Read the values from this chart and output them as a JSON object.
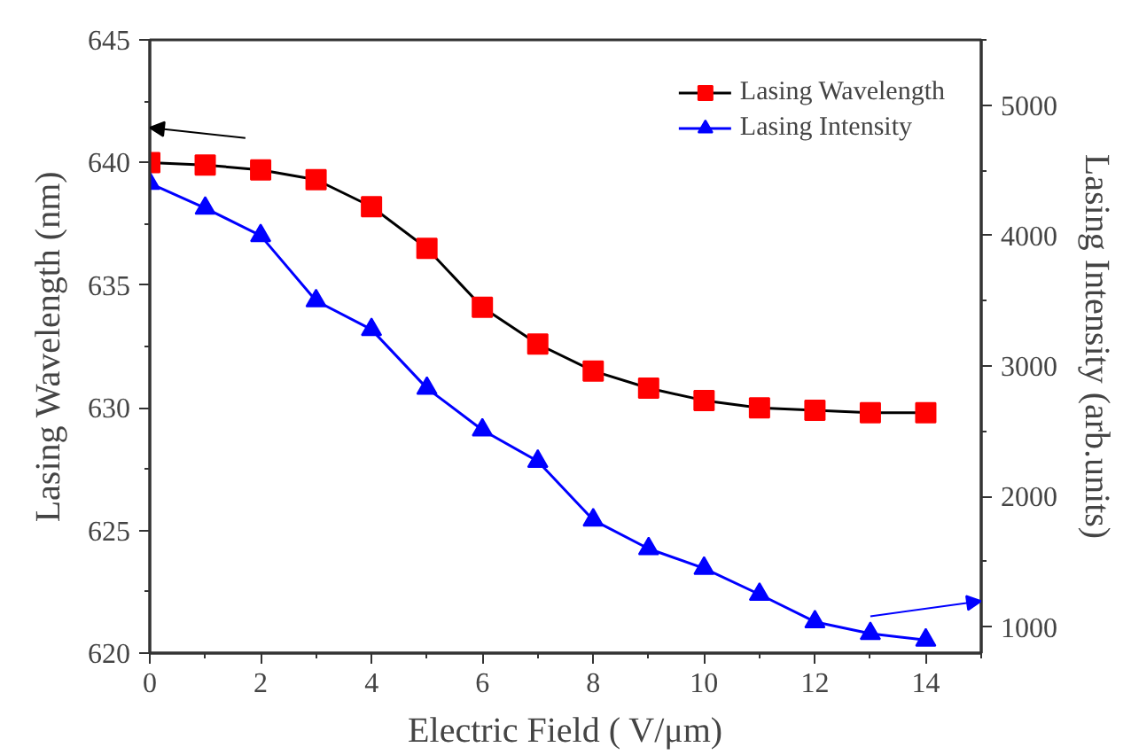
{
  "chart_data": {
    "type": "line",
    "xlabel": "Electric Field ( V/μm)",
    "ylabel": "Lasing Wavelength (nm)",
    "y2label": "Lasing Intensity (arb.units)",
    "x": [
      0,
      1,
      2,
      3,
      4,
      5,
      6,
      7,
      8,
      9,
      10,
      11,
      12,
      13,
      14
    ],
    "xlim": [
      0,
      15
    ],
    "xticks": [
      0,
      2,
      4,
      6,
      8,
      10,
      12,
      14
    ],
    "ylim": [
      620,
      645
    ],
    "yticks": [
      620,
      625,
      630,
      635,
      640,
      645
    ],
    "y2lim": [
      800,
      5500
    ],
    "y2ticks": [
      1000,
      2000,
      3000,
      4000,
      5000
    ],
    "series": [
      {
        "name": "Lasing Wavelength",
        "color": "#ff0000",
        "marker": "square",
        "values": [
          640.0,
          639.9,
          639.7,
          639.3,
          638.2,
          636.5,
          634.1,
          632.6,
          631.5,
          630.8,
          630.3,
          630.0,
          629.9,
          629.8,
          629.8
        ]
      },
      {
        "name": "Lasing Intensity",
        "color": "#0000ff",
        "marker": "triangle",
        "axis": "y2",
        "values": [
          4400,
          4210,
          4000,
          3500,
          3280,
          2830,
          2510,
          2270,
          1820,
          1600,
          1450,
          1250,
          1040,
          950,
          900
        ]
      }
    ],
    "grid": false,
    "legend": "top right"
  }
}
